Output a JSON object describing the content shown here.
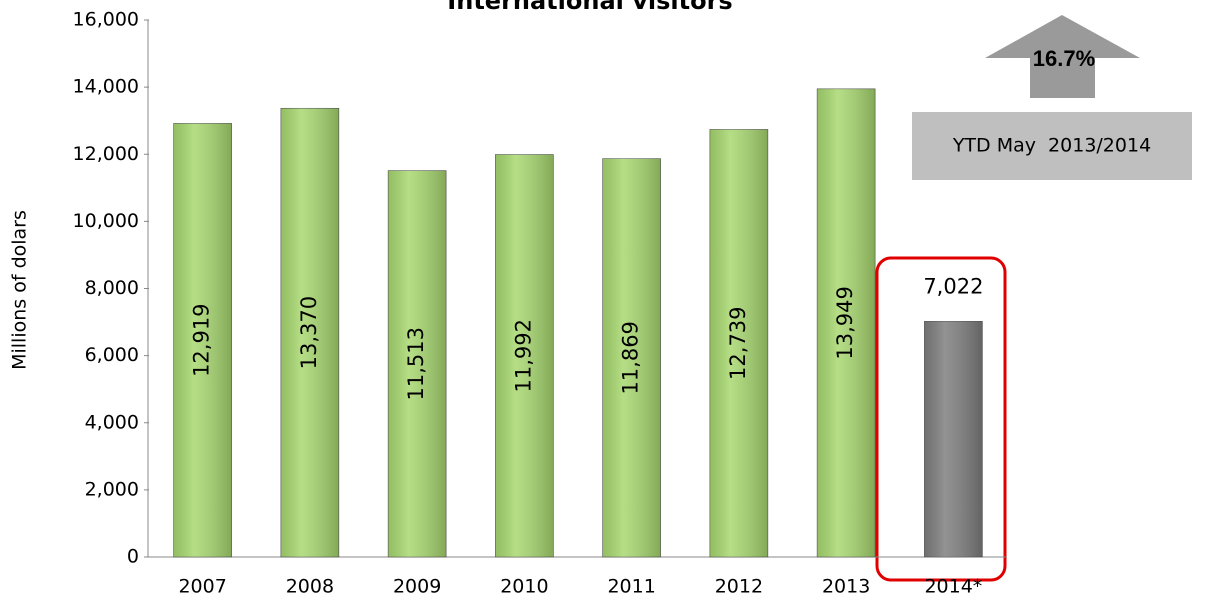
{
  "chart_data": {
    "type": "bar",
    "title": "International visitors",
    "y_label": "Millions of dolars",
    "categories": [
      "2007",
      "2008",
      "2009",
      "2010",
      "2011",
      "2012",
      "2013",
      "2014*"
    ],
    "values": [
      12919,
      13370,
      11513,
      11992,
      11869,
      12739,
      13949,
      7022
    ],
    "value_labels": [
      "12,919",
      "13,370",
      "11,513",
      "11,992",
      "11,869",
      "12,739",
      "13,949",
      "7,022"
    ],
    "colors": [
      "#a8d870",
      "#a8d870",
      "#a8d870",
      "#a8d870",
      "#a8d870",
      "#a8d870",
      "#a8d870",
      "#7f7f7f"
    ],
    "label_positions": [
      "inside",
      "inside",
      "inside",
      "inside",
      "inside",
      "inside",
      "inside",
      "above"
    ],
    "ylim": [
      0,
      16000
    ],
    "yticks": [
      0,
      {
        "value": 2000,
        "label": "2,000"
      },
      {
        "value": 4000,
        "label": "4,000"
      },
      {
        "value": 6000,
        "label": "6,000"
      },
      {
        "value": 8000,
        "label": "8,000"
      },
      {
        "value": 10000,
        "label": "10,000"
      },
      {
        "value": 12000,
        "label": "12,000"
      },
      {
        "value": 14000,
        "label": "14,000"
      },
      {
        "value": 16000,
        "label": "16,000"
      }
    ],
    "grid": false,
    "annotations": [
      "16.7%",
      "YTD May  2013/2014"
    ]
  }
}
